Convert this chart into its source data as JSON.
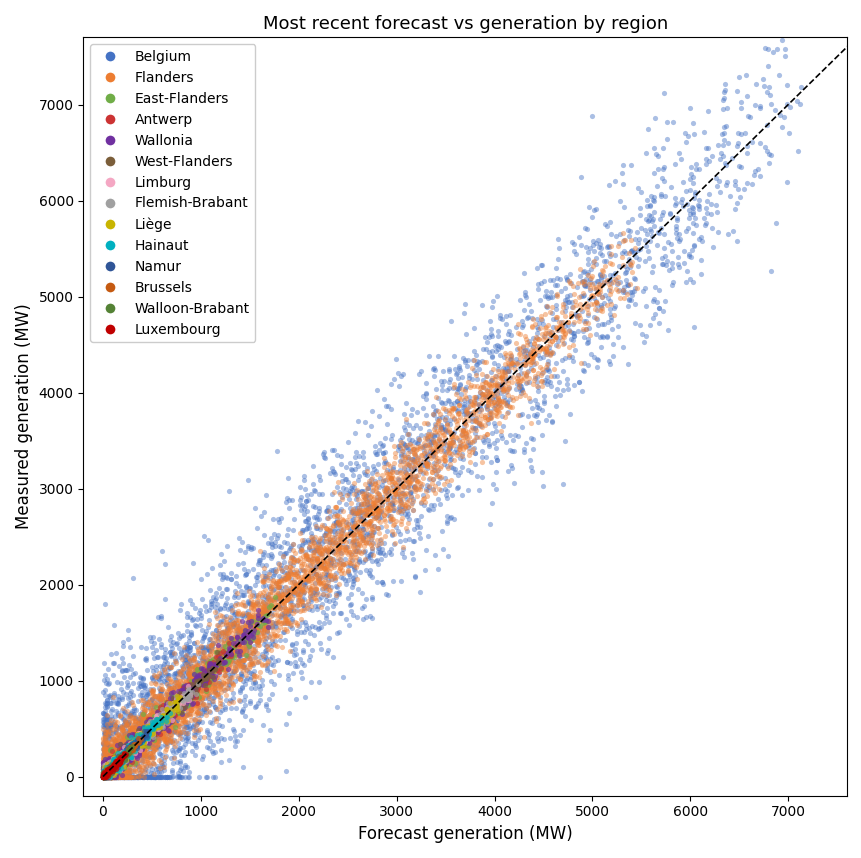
{
  "title": "Most recent forecast vs generation by region",
  "xlabel": "Forecast generation (MW)",
  "ylabel": "Measured generation (MW)",
  "xlim": [
    -200,
    7600
  ],
  "ylim": [
    -200,
    7700
  ],
  "regions": [
    {
      "name": "Belgium",
      "color": "#4472C4",
      "n": 4000,
      "x_max": 7200,
      "x_min": 0,
      "noise": 500,
      "alpha": 0.45,
      "marker_size": 14
    },
    {
      "name": "Flanders",
      "color": "#ED7D31",
      "n": 4000,
      "x_max": 5500,
      "x_min": 0,
      "noise": 200,
      "alpha": 0.45,
      "marker_size": 14
    },
    {
      "name": "East-Flanders",
      "color": "#70AD47",
      "n": 400,
      "x_max": 1800,
      "x_min": 0,
      "noise": 80,
      "alpha": 0.7,
      "marker_size": 14
    },
    {
      "name": "Antwerp",
      "color": "#CC3333",
      "n": 400,
      "x_max": 1400,
      "x_min": 0,
      "noise": 60,
      "alpha": 0.7,
      "marker_size": 14
    },
    {
      "name": "Wallonia",
      "color": "#7030A0",
      "n": 500,
      "x_max": 1700,
      "x_min": 0,
      "noise": 70,
      "alpha": 0.7,
      "marker_size": 14
    },
    {
      "name": "West-Flanders",
      "color": "#7B5E3A",
      "n": 400,
      "x_max": 1200,
      "x_min": 0,
      "noise": 50,
      "alpha": 0.7,
      "marker_size": 14
    },
    {
      "name": "Limburg",
      "color": "#F4A7C3",
      "n": 350,
      "x_max": 900,
      "x_min": 0,
      "noise": 40,
      "alpha": 0.7,
      "marker_size": 14
    },
    {
      "name": "Flemish-Brabant",
      "color": "#A0A0A0",
      "n": 350,
      "x_max": 1000,
      "x_min": 0,
      "noise": 40,
      "alpha": 0.7,
      "marker_size": 14
    },
    {
      "name": "Liège",
      "color": "#C8B400",
      "n": 300,
      "x_max": 800,
      "x_min": 0,
      "noise": 35,
      "alpha": 0.7,
      "marker_size": 14
    },
    {
      "name": "Hainaut",
      "color": "#00B0C0",
      "n": 300,
      "x_max": 700,
      "x_min": 0,
      "noise": 35,
      "alpha": 0.7,
      "marker_size": 14
    },
    {
      "name": "Namur",
      "color": "#2F5597",
      "n": 200,
      "x_max": 500,
      "x_min": 0,
      "noise": 25,
      "alpha": 0.7,
      "marker_size": 14
    },
    {
      "name": "Brussels",
      "color": "#C55A11",
      "n": 200,
      "x_max": 400,
      "x_min": 0,
      "noise": 20,
      "alpha": 0.7,
      "marker_size": 14
    },
    {
      "name": "Walloon-Brabant",
      "color": "#548235",
      "n": 150,
      "x_max": 300,
      "x_min": 0,
      "noise": 18,
      "alpha": 0.7,
      "marker_size": 14
    },
    {
      "name": "Luxembourg",
      "color": "#C00000",
      "n": 150,
      "x_max": 250,
      "x_min": 0,
      "noise": 15,
      "alpha": 0.7,
      "marker_size": 14
    }
  ],
  "diagonal_color": "black",
  "diagonal_linestyle": "--",
  "background_color": "#ffffff",
  "legend_fontsize": 10,
  "title_fontsize": 13
}
